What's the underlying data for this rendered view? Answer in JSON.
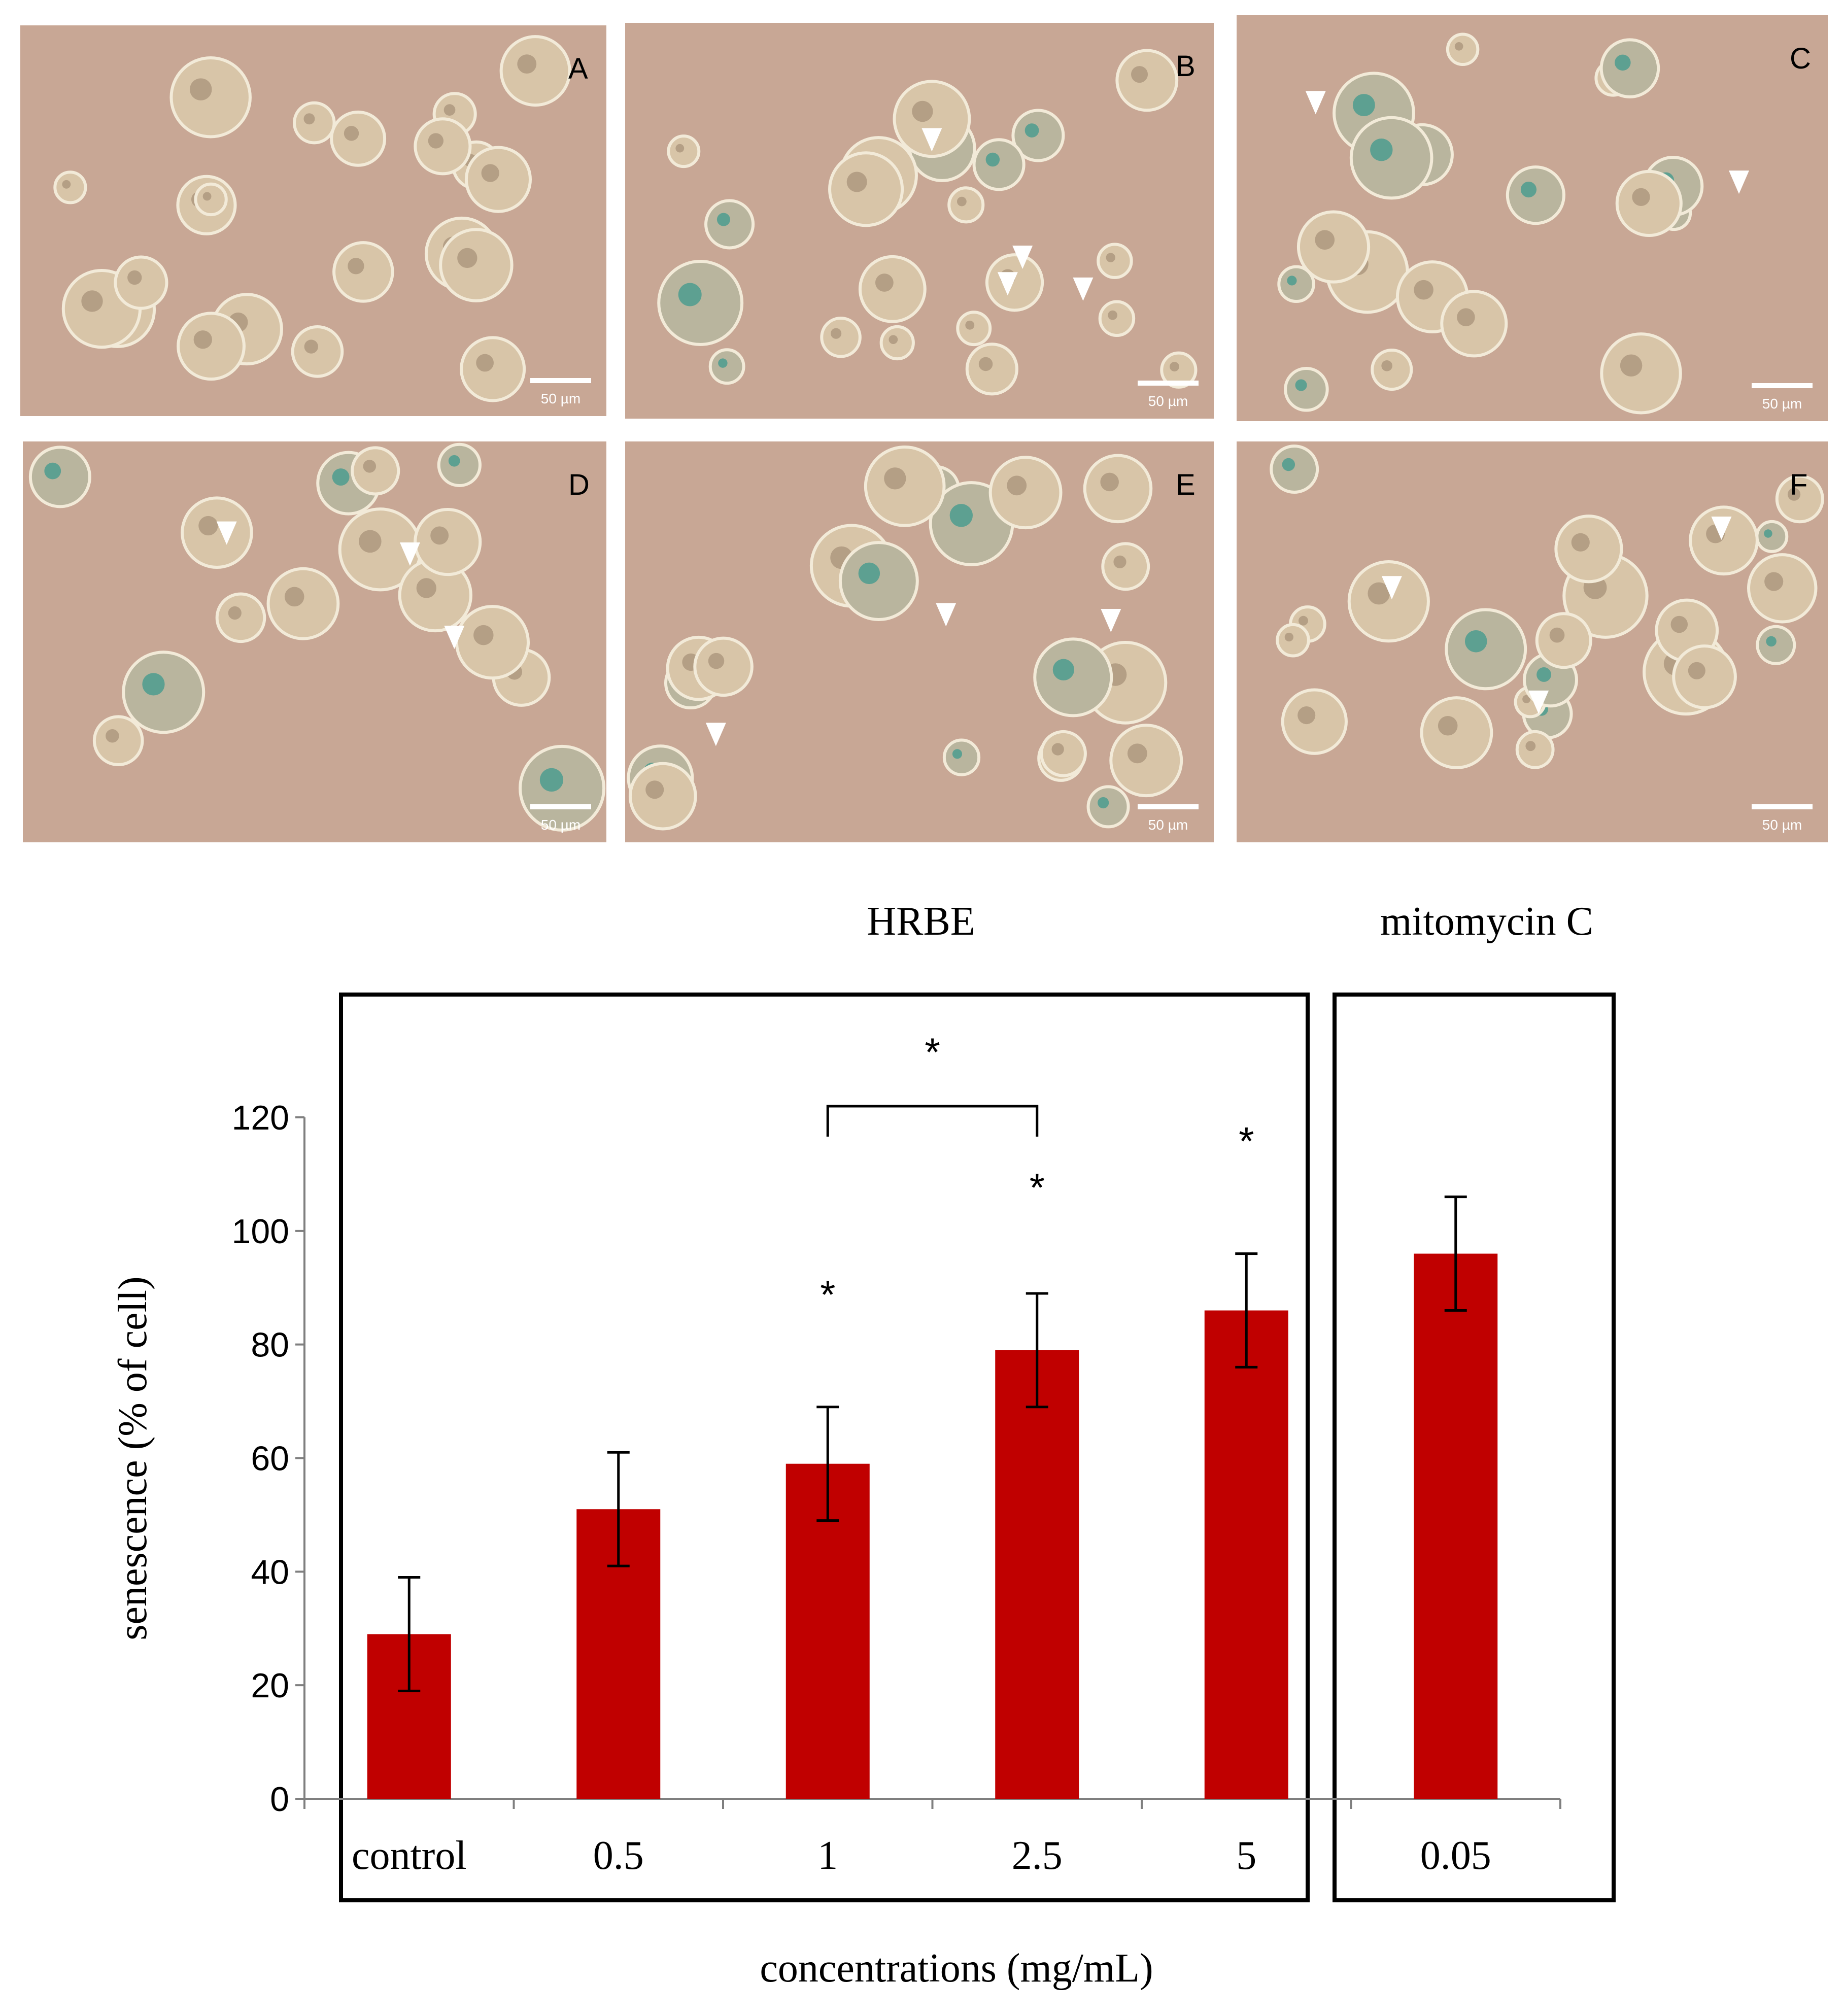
{
  "panels": [
    {
      "letter": "A",
      "scale": "50 µm",
      "arrowheads": 0
    },
    {
      "letter": "B",
      "scale": "50 µm",
      "arrowheads": 4
    },
    {
      "letter": "C",
      "scale": "50 µm",
      "arrowheads": 2
    },
    {
      "letter": "D",
      "scale": "50 µm",
      "arrowheads": 3
    },
    {
      "letter": "E",
      "scale": "50 µm",
      "arrowheads": 3
    },
    {
      "letter": "F",
      "scale": "50 µm",
      "arrowheads": 3
    }
  ],
  "group_labels": {
    "hrbe": "HRBE",
    "mitomycin": "mitomycin C"
  },
  "chart_data": {
    "type": "bar",
    "xlabel": "concentrations (mg/mL)",
    "ylabel": "senescence (% of  cell)",
    "categories": [
      "control",
      "0.5",
      "1",
      "2.5",
      "5",
      "0.05"
    ],
    "values": [
      29,
      51,
      59,
      79,
      86,
      96
    ],
    "errors": [
      10,
      10,
      10,
      10,
      10,
      10
    ],
    "significance": [
      "",
      "",
      "*",
      "*",
      "*",
      ""
    ],
    "bracket": {
      "from": "1",
      "to": "2.5",
      "label": "*"
    },
    "groups": [
      {
        "label": "HRBE",
        "categories": [
          "control",
          "0.5",
          "1",
          "2.5",
          "5"
        ]
      },
      {
        "label": "mitomycin C",
        "categories": [
          "0.05"
        ]
      }
    ],
    "ylim": [
      0,
      120
    ],
    "yticks": [
      0,
      20,
      40,
      60,
      80,
      100,
      120
    ],
    "bar_color": "#c00000",
    "grid": false
  }
}
